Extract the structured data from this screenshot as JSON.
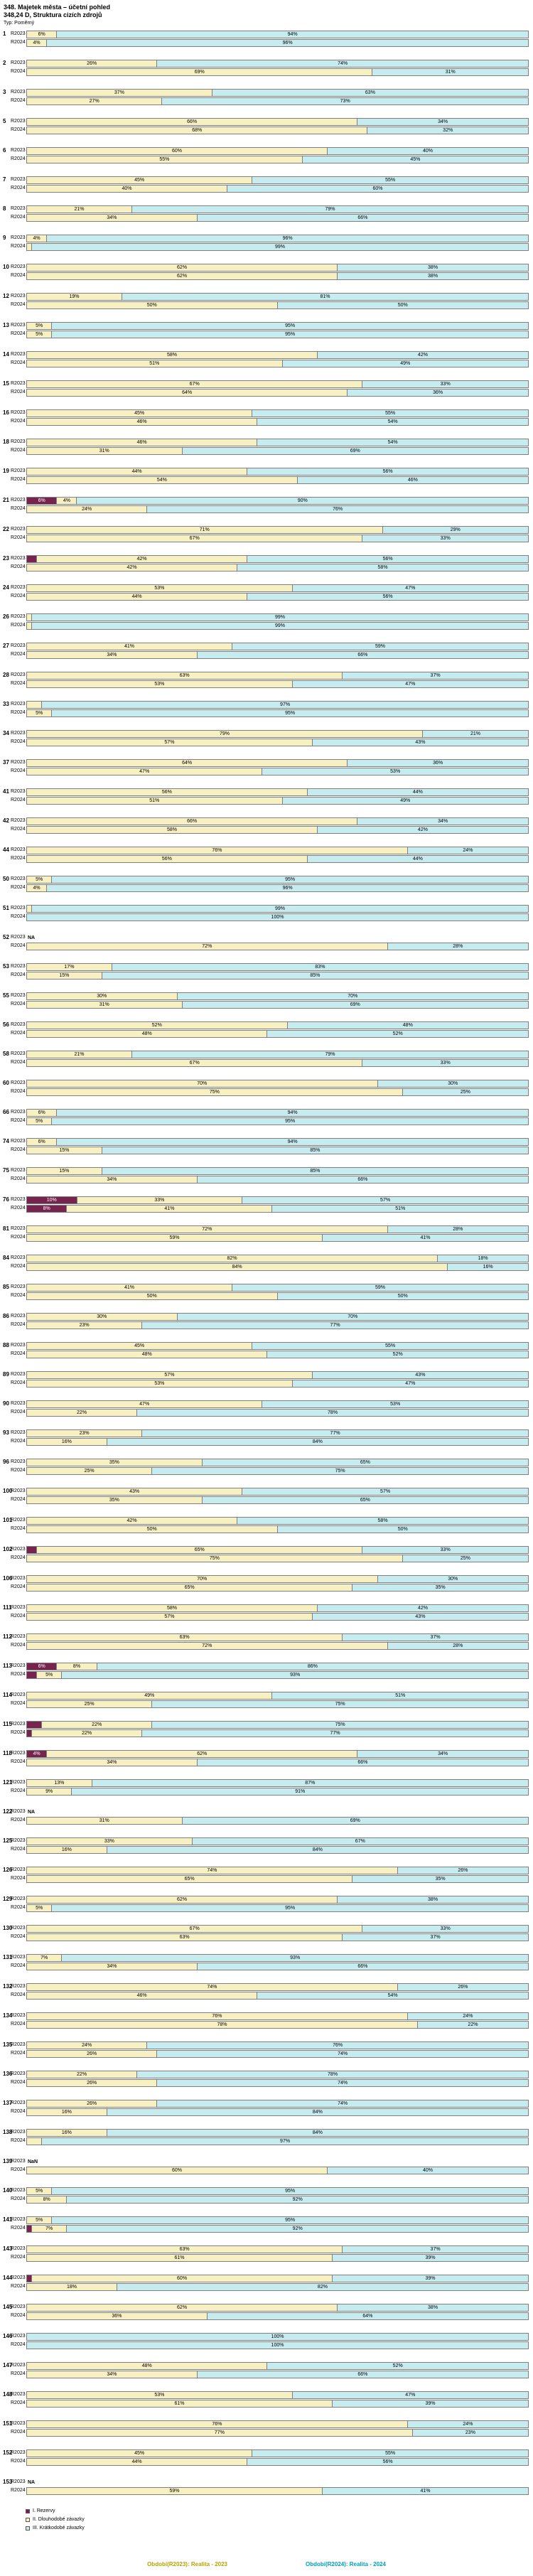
{
  "header": {
    "title_line1": "348. Majetek města – účetní pohled",
    "title_line2": "348,24 D, Struktura cizích zdrojů",
    "type_label": "Typ: Poměrný"
  },
  "legend": {
    "items": [
      {
        "key": "rezervy",
        "label": "I. Rezervy",
        "color": "#76234d"
      },
      {
        "key": "dlouhodobe",
        "label": "II. Dlouhodobé závazky",
        "color": "#f6f0c2"
      },
      {
        "key": "kratkodobe",
        "label": "III. Krátkodobé závazky",
        "color": "#c6ecf0"
      }
    ]
  },
  "footer": {
    "left": {
      "text": "Období(R2023): Realita - 2023",
      "color": "#b5a300"
    },
    "right": {
      "text": "Období(R2024): Realita - 2024",
      "color": "#00a0b8"
    }
  },
  "chart_data": {
    "type": "bar",
    "orientation": "horizontal",
    "stacked": true,
    "value_unit": "%",
    "x_range": [
      0,
      100
    ],
    "series_labels": [
      "R2023",
      "R2024"
    ],
    "segments": [
      {
        "key": "rezervy",
        "name": "I. Rezervy",
        "color": "#76234d"
      },
      {
        "key": "dlouhodobe",
        "name": "II. Dlouhodobé závazky",
        "color": "#f6f0c2"
      },
      {
        "key": "kratkodobe",
        "name": "III. Krátkodobé závazky",
        "color": "#c6ecf0"
      }
    ],
    "rows": [
      {
        "id": "1",
        "r2023": [
          0,
          6,
          94
        ],
        "r2024": [
          0,
          4,
          96
        ]
      },
      {
        "id": "2",
        "r2023": [
          0,
          26,
          74
        ],
        "r2024": [
          0,
          69,
          31
        ]
      },
      {
        "id": "3",
        "r2023": [
          0,
          37,
          63
        ],
        "r2024": [
          0,
          27,
          73
        ]
      },
      {
        "id": "5",
        "r2023": [
          0,
          66,
          34
        ],
        "r2024": [
          0,
          68,
          32
        ]
      },
      {
        "id": "6",
        "r2023": [
          0,
          60,
          40
        ],
        "r2024": [
          0,
          55,
          45
        ]
      },
      {
        "id": "7",
        "r2023": [
          0,
          45,
          55
        ],
        "r2024": [
          0,
          40,
          60
        ]
      },
      {
        "id": "8",
        "r2023": [
          0,
          21,
          79
        ],
        "r2024": [
          0,
          34,
          66
        ]
      },
      {
        "id": "9",
        "r2023": [
          0,
          4,
          96
        ],
        "r2024": [
          0,
          1,
          99
        ]
      },
      {
        "id": "10",
        "r2023": [
          0,
          62,
          38
        ],
        "r2024": [
          0,
          62,
          38
        ]
      },
      {
        "id": "12",
        "r2023": [
          0,
          19,
          81
        ],
        "r2024": [
          0,
          50,
          50
        ]
      },
      {
        "id": "13",
        "r2023": [
          0,
          5,
          95
        ],
        "r2024": [
          0,
          5,
          95
        ]
      },
      {
        "id": "14",
        "r2023": [
          0,
          58,
          42
        ],
        "r2024": [
          0,
          51,
          49
        ]
      },
      {
        "id": "15",
        "r2023": [
          0,
          67,
          33
        ],
        "r2024": [
          0,
          64,
          36
        ]
      },
      {
        "id": "16",
        "r2023": [
          0,
          45,
          55
        ],
        "r2024": [
          0,
          46,
          54
        ]
      },
      {
        "id": "18",
        "r2023": [
          0,
          46,
          54
        ],
        "r2024": [
          0,
          31,
          69
        ]
      },
      {
        "id": "19",
        "r2023": [
          0,
          44,
          56
        ],
        "r2024": [
          0,
          54,
          46
        ]
      },
      {
        "id": "21",
        "r2023": [
          6,
          4,
          90
        ],
        "r2024": [
          0,
          24,
          76
        ]
      },
      {
        "id": "22",
        "r2023": [
          0,
          71,
          29
        ],
        "r2024": [
          0,
          67,
          33
        ]
      },
      {
        "id": "23",
        "r2023": [
          2,
          42,
          56
        ],
        "r2024": [
          0,
          42,
          58
        ]
      },
      {
        "id": "24",
        "r2023": [
          0,
          53,
          47
        ],
        "r2024": [
          0,
          44,
          56
        ]
      },
      {
        "id": "26",
        "r2023": [
          0,
          1,
          99
        ],
        "r2024": [
          0,
          1,
          99
        ]
      },
      {
        "id": "27",
        "r2023": [
          0,
          41,
          59
        ],
        "r2024": [
          0,
          34,
          66
        ]
      },
      {
        "id": "28",
        "r2023": [
          0,
          63,
          37
        ],
        "r2024": [
          0,
          53,
          47
        ]
      },
      {
        "id": "33",
        "r2023": [
          0,
          3,
          97
        ],
        "r2024": [
          0,
          5,
          95
        ]
      },
      {
        "id": "34",
        "r2023": [
          0,
          79,
          21
        ],
        "r2024": [
          0,
          57,
          43
        ]
      },
      {
        "id": "37",
        "r2023": [
          0,
          64,
          36
        ],
        "r2024": [
          0,
          47,
          53
        ]
      },
      {
        "id": "41",
        "r2023": [
          0,
          56,
          44
        ],
        "r2024": [
          0,
          51,
          49
        ]
      },
      {
        "id": "42",
        "r2023": [
          0,
          66,
          34
        ],
        "r2024": [
          0,
          58,
          42
        ]
      },
      {
        "id": "44",
        "r2023": [
          0,
          76,
          24
        ],
        "r2024": [
          0,
          56,
          44
        ]
      },
      {
        "id": "50",
        "r2023": [
          0,
          5,
          95
        ],
        "r2024": [
          0,
          4,
          96
        ]
      },
      {
        "id": "51",
        "r2023": [
          0,
          1,
          99
        ],
        "r2024": [
          0,
          0,
          100
        ]
      },
      {
        "id": "52",
        "r2023": "NA",
        "r2024": [
          0,
          72,
          28
        ]
      },
      {
        "id": "53",
        "r2023": [
          0,
          17,
          83
        ],
        "r2024": [
          0,
          15,
          85
        ]
      },
      {
        "id": "55",
        "r2023": [
          0,
          30,
          70
        ],
        "r2024": [
          0,
          31,
          69
        ]
      },
      {
        "id": "56",
        "r2023": [
          0,
          52,
          48
        ],
        "r2024": [
          0,
          48,
          52
        ]
      },
      {
        "id": "58",
        "r2023": [
          0,
          21,
          79
        ],
        "r2024": [
          0,
          67,
          33
        ]
      },
      {
        "id": "60",
        "r2023": [
          0,
          70,
          30
        ],
        "r2024": [
          0,
          75,
          25
        ]
      },
      {
        "id": "66",
        "r2023": [
          0,
          6,
          94
        ],
        "r2024": [
          0,
          5,
          95
        ]
      },
      {
        "id": "74",
        "r2023": [
          0,
          6,
          94
        ],
        "r2024": [
          0,
          15,
          85
        ]
      },
      {
        "id": "75",
        "r2023": [
          0,
          15,
          85
        ],
        "r2024": [
          0,
          34,
          66
        ]
      },
      {
        "id": "76",
        "r2023": [
          10,
          33,
          57
        ],
        "r2024": [
          8,
          41,
          51
        ]
      },
      {
        "id": "81",
        "r2023": [
          0,
          72,
          28
        ],
        "r2024": [
          0,
          59,
          41
        ]
      },
      {
        "id": "84",
        "r2023": [
          0,
          82,
          18
        ],
        "r2024": [
          0,
          84,
          16
        ]
      },
      {
        "id": "85",
        "r2023": [
          0,
          41,
          59
        ],
        "r2024": [
          0,
          50,
          50
        ]
      },
      {
        "id": "86",
        "r2023": [
          0,
          30,
          70
        ],
        "r2024": [
          0,
          23,
          77
        ]
      },
      {
        "id": "88",
        "r2023": [
          0,
          45,
          55
        ],
        "r2024": [
          0,
          48,
          52
        ]
      },
      {
        "id": "89",
        "r2023": [
          0,
          57,
          43
        ],
        "r2024": [
          0,
          53,
          47
        ]
      },
      {
        "id": "90",
        "r2023": [
          0,
          47,
          53
        ],
        "r2024": [
          0,
          22,
          78
        ]
      },
      {
        "id": "93",
        "r2023": [
          0,
          23,
          77
        ],
        "r2024": [
          0,
          16,
          84
        ]
      },
      {
        "id": "96",
        "r2023": [
          0,
          35,
          65
        ],
        "r2024": [
          0,
          25,
          75
        ]
      },
      {
        "id": "100",
        "r2023": [
          0,
          43,
          57
        ],
        "r2024": [
          0,
          35,
          65
        ]
      },
      {
        "id": "101",
        "r2023": [
          0,
          42,
          58
        ],
        "r2024": [
          0,
          50,
          50
        ]
      },
      {
        "id": "102",
        "r2023": [
          2,
          65,
          33
        ],
        "r2024": [
          0,
          75,
          25
        ]
      },
      {
        "id": "106",
        "r2023": [
          0,
          70,
          30
        ],
        "r2024": [
          0,
          65,
          35
        ]
      },
      {
        "id": "111",
        "r2023": [
          0,
          58,
          42
        ],
        "r2024": [
          0,
          57,
          43
        ]
      },
      {
        "id": "112",
        "r2023": [
          0,
          63,
          37
        ],
        "r2024": [
          0,
          72,
          28
        ]
      },
      {
        "id": "113",
        "r2023": [
          6,
          8,
          86
        ],
        "r2024": [
          2,
          5,
          93
        ]
      },
      {
        "id": "114",
        "r2023": [
          0,
          49,
          51
        ],
        "r2024": [
          0,
          25,
          75
        ]
      },
      {
        "id": "115",
        "r2023": [
          3,
          22,
          75
        ],
        "r2024": [
          1,
          22,
          77
        ]
      },
      {
        "id": "118",
        "r2023": [
          4,
          62,
          34
        ],
        "r2024": [
          0,
          34,
          66
        ]
      },
      {
        "id": "121",
        "r2023": [
          0,
          13,
          87
        ],
        "r2024": [
          0,
          9,
          91
        ]
      },
      {
        "id": "122",
        "r2023": "NA",
        "r2024": [
          0,
          31,
          69
        ]
      },
      {
        "id": "125",
        "r2023": [
          0,
          33,
          67
        ],
        "r2024": [
          0,
          16,
          84
        ]
      },
      {
        "id": "126",
        "r2023": [
          0,
          74,
          26
        ],
        "r2024": [
          0,
          65,
          35
        ]
      },
      {
        "id": "129",
        "r2023": [
          0,
          62,
          38
        ],
        "r2024": [
          0,
          5,
          95
        ]
      },
      {
        "id": "130",
        "r2023": [
          0,
          67,
          33
        ],
        "r2024": [
          0,
          63,
          37
        ]
      },
      {
        "id": "131",
        "r2023": [
          0,
          7,
          93
        ],
        "r2024": [
          0,
          34,
          66
        ]
      },
      {
        "id": "132",
        "r2023": [
          0,
          74,
          26
        ],
        "r2024": [
          0,
          46,
          54
        ]
      },
      {
        "id": "134",
        "r2023": [
          0,
          76,
          24
        ],
        "r2024": [
          0,
          78,
          22
        ]
      },
      {
        "id": "135",
        "r2023": [
          0,
          24,
          76
        ],
        "r2024": [
          0,
          26,
          74
        ]
      },
      {
        "id": "136",
        "r2023": [
          0,
          22,
          78
        ],
        "r2024": [
          0,
          26,
          74
        ]
      },
      {
        "id": "137",
        "r2023": [
          0,
          26,
          74
        ],
        "r2024": [
          0,
          16,
          84
        ]
      },
      {
        "id": "138",
        "r2023": [
          0,
          16,
          84
        ],
        "r2024": [
          0,
          3,
          97
        ]
      },
      {
        "id": "139",
        "r2023": "NaN",
        "r2024": [
          0,
          60,
          40
        ]
      },
      {
        "id": "140",
        "r2023": [
          0,
          5,
          95
        ],
        "r2024": [
          0,
          8,
          92
        ]
      },
      {
        "id": "141",
        "r2023": [
          0,
          5,
          95
        ],
        "r2024": [
          1,
          7,
          92
        ]
      },
      {
        "id": "143",
        "r2023": [
          0,
          63,
          37
        ],
        "r2024": [
          0,
          61,
          39
        ]
      },
      {
        "id": "144",
        "r2023": [
          1,
          60,
          39
        ],
        "r2024": [
          0,
          18,
          82
        ]
      },
      {
        "id": "145",
        "r2023": [
          0,
          62,
          38
        ],
        "r2024": [
          0,
          36,
          64
        ]
      },
      {
        "id": "146",
        "r2023": [
          0,
          0,
          100
        ],
        "r2024": [
          0,
          0,
          100
        ]
      },
      {
        "id": "147",
        "r2023": [
          0,
          48,
          52
        ],
        "r2024": [
          0,
          34,
          66
        ]
      },
      {
        "id": "148",
        "r2023": [
          0,
          53,
          47
        ],
        "r2024": [
          0,
          61,
          39
        ]
      },
      {
        "id": "151",
        "r2023": [
          0,
          76,
          24
        ],
        "r2024": [
          0,
          77,
          23
        ]
      },
      {
        "id": "152",
        "r2023": [
          0,
          45,
          55
        ],
        "r2024": [
          0,
          44,
          56
        ]
      },
      {
        "id": "153",
        "r2023": "NA",
        "r2024": [
          0,
          59,
          41
        ]
      }
    ]
  }
}
